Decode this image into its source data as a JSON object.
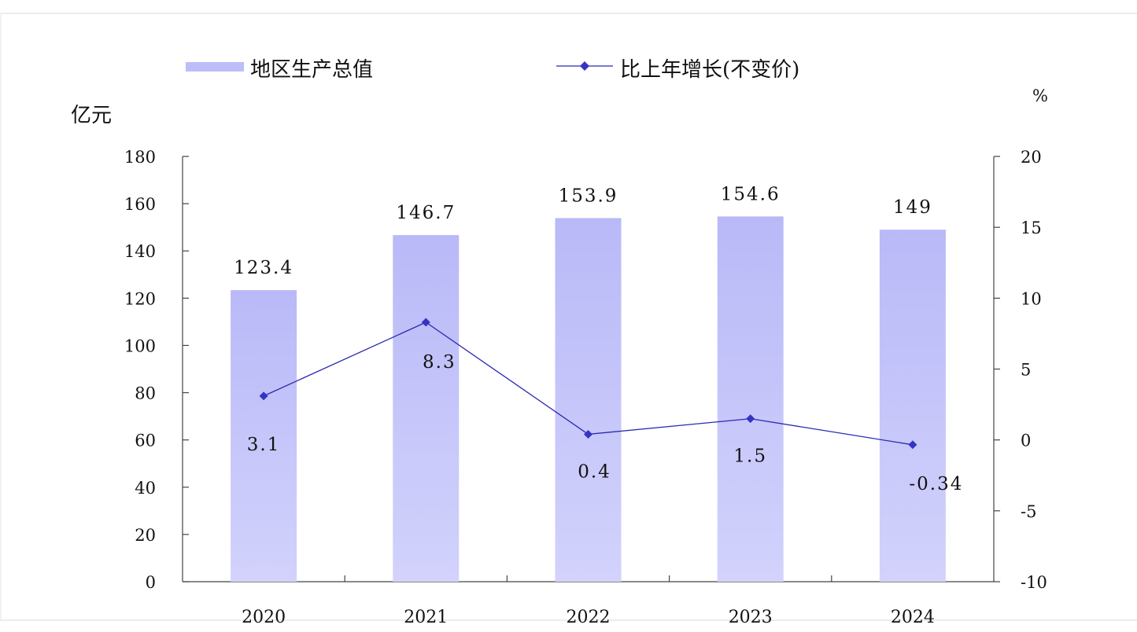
{
  "chart_data": {
    "type": "bar",
    "categories": [
      "2020",
      "2021",
      "2022",
      "2023",
      "2024"
    ],
    "series": [
      {
        "name": "地区生产总值",
        "type": "bar",
        "axis": "left",
        "values": [
          123.4,
          146.7,
          153.9,
          154.6,
          149
        ],
        "labels": [
          "123.4",
          "146.7",
          "153.9",
          "154.6",
          "149"
        ]
      },
      {
        "name": "比上年增长(不变价)",
        "type": "line",
        "axis": "right",
        "values": [
          3.1,
          8.3,
          0.4,
          1.5,
          -0.34
        ],
        "labels": [
          "3.1",
          "8.3",
          "0.4",
          "1.5",
          "-0.34"
        ]
      }
    ],
    "ylabel": "亿元",
    "y2label": "%",
    "ylim": [
      0,
      180
    ],
    "y2lim": [
      -10,
      20
    ],
    "yticks": [
      "0",
      "20",
      "40",
      "60",
      "80",
      "100",
      "120",
      "140",
      "160",
      "180"
    ],
    "y2ticks": [
      "-10",
      "-5",
      "0",
      "5",
      "10",
      "15",
      "20"
    ],
    "legend_position": "top",
    "grid": false,
    "colors": {
      "bar": "#bdbdfa",
      "line": "#2a2ab4",
      "marker": "#3434c4",
      "axis": "#444444"
    }
  }
}
